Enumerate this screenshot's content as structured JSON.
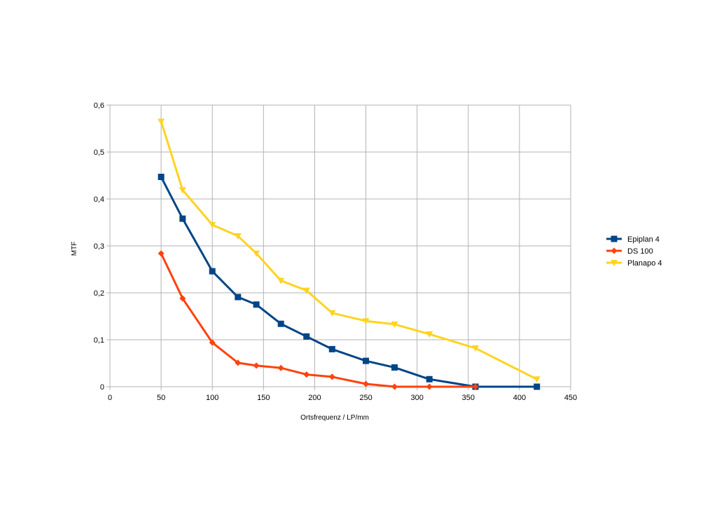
{
  "chart_data": {
    "type": "line",
    "title": "",
    "xlabel": "Ortsfrequenz / LP/mm",
    "ylabel": "MTF",
    "xlim": [
      0,
      450
    ],
    "ylim": [
      0,
      0.6
    ],
    "xticks": [
      0,
      50,
      100,
      150,
      200,
      250,
      300,
      350,
      400,
      450
    ],
    "yticks": [
      0,
      0.1,
      0.2,
      0.3,
      0.4,
      0.5,
      0.6
    ],
    "xtick_labels": [
      "0",
      "50",
      "100",
      "150",
      "200",
      "250",
      "300",
      "350",
      "400",
      "450"
    ],
    "ytick_labels": [
      "0",
      "0,1",
      "0,2",
      "0,3",
      "0,4",
      "0,5",
      "0,6"
    ],
    "grid": true,
    "legend_position": "right",
    "series": [
      {
        "name": "Epiplan 4",
        "color": "#004586",
        "marker": "square",
        "x": [
          50,
          71,
          100,
          125,
          143,
          167,
          192,
          217,
          250,
          278,
          312,
          357,
          417
        ],
        "y": [
          0.447,
          0.358,
          0.246,
          0.191,
          0.175,
          0.134,
          0.107,
          0.08,
          0.055,
          0.041,
          0.016,
          0.0,
          0.0
        ]
      },
      {
        "name": "DS 100",
        "color": "#ff420e",
        "marker": "diamond",
        "x": [
          50,
          71,
          100,
          125,
          143,
          167,
          192,
          217,
          250,
          278,
          312,
          357
        ],
        "y": [
          0.284,
          0.188,
          0.094,
          0.051,
          0.045,
          0.04,
          0.026,
          0.021,
          0.006,
          0.0,
          0.0,
          0.0
        ]
      },
      {
        "name": "Planapo 4",
        "color": "#ffd320",
        "marker": "triangle-down",
        "x": [
          50,
          71,
          100,
          125,
          143,
          167,
          192,
          217,
          250,
          278,
          312,
          357,
          417
        ],
        "y": [
          0.565,
          0.419,
          0.345,
          0.321,
          0.284,
          0.226,
          0.205,
          0.157,
          0.14,
          0.133,
          0.112,
          0.082,
          0.016
        ]
      }
    ]
  }
}
